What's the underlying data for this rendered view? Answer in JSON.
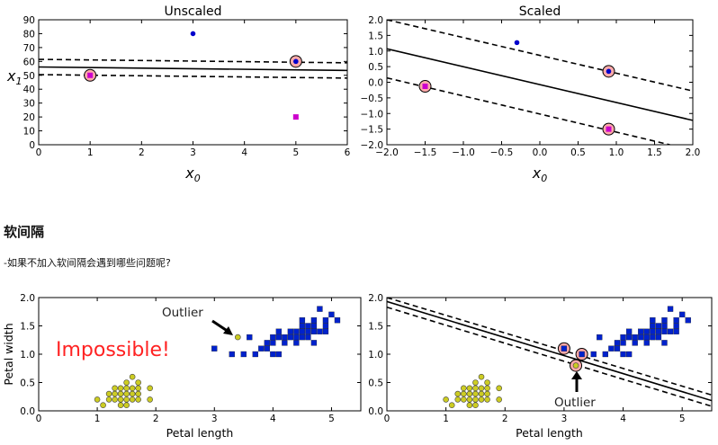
{
  "section_heading": "软间隔",
  "section_text": "-如果不加入软间隔会遇到哪些问题呢?",
  "chart_data": [
    {
      "type": "scatter",
      "title": "Unscaled",
      "xlabel": "x0",
      "ylabel": "x1",
      "xlim": [
        0,
        6
      ],
      "ylim": [
        0,
        90
      ],
      "xticks": [
        0,
        1,
        2,
        3,
        4,
        5,
        6
      ],
      "yticks": [
        0,
        10,
        20,
        30,
        40,
        50,
        60,
        70,
        80,
        90
      ],
      "series": [
        {
          "marker": "square",
          "color": "#cc00cc",
          "points": [
            [
              1,
              50
            ],
            [
              5,
              20
            ]
          ]
        },
        {
          "marker": "circle",
          "color": "#0000cc",
          "points": [
            [
              3,
              80
            ],
            [
              5,
              60
            ]
          ]
        }
      ],
      "support_vectors": [
        [
          1,
          50
        ],
        [
          5,
          60
        ]
      ],
      "lines": [
        {
          "style": "solid",
          "points": [
            [
              0,
              56
            ],
            [
              6,
              53.5
            ]
          ]
        },
        {
          "style": "dashed",
          "points": [
            [
              0,
              61.5
            ],
            [
              6,
              59
            ]
          ]
        },
        {
          "style": "dashed",
          "points": [
            [
              0,
              50.5
            ],
            [
              6,
              48
            ]
          ]
        }
      ]
    },
    {
      "type": "scatter",
      "title": "Scaled",
      "xlabel": "x0",
      "ylabel": "",
      "xlim": [
        -2,
        2
      ],
      "ylim": [
        -2,
        2
      ],
      "xticks": [
        -2,
        -1.5,
        -1,
        -0.5,
        0,
        0.5,
        1,
        1.5,
        2
      ],
      "xtick_labels": [
        "−2.0",
        "−1.5",
        "−1.0",
        "−0.5",
        "0.0",
        "0.5",
        "1.0",
        "1.5",
        "2.0"
      ],
      "yticks": [
        -2,
        -1.5,
        -1,
        -0.5,
        0,
        0.5,
        1,
        1.5,
        2
      ],
      "ytick_labels": [
        "−2.0",
        "−1.5",
        "−1.0",
        "−0.5",
        "0.0",
        "0.5",
        "1.0",
        "1.5",
        "2.0"
      ],
      "series": [
        {
          "marker": "square",
          "color": "#cc00cc",
          "points": [
            [
              -1.5,
              -0.13
            ],
            [
              0.9,
              -1.5
            ]
          ]
        },
        {
          "marker": "circle",
          "color": "#0000cc",
          "points": [
            [
              -0.3,
              1.27
            ],
            [
              0.9,
              0.35
            ]
          ]
        }
      ],
      "support_vectors": [
        [
          -1.5,
          -0.13
        ],
        [
          0.9,
          -1.5
        ],
        [
          0.9,
          0.35
        ]
      ],
      "lines": [
        {
          "style": "solid",
          "points": [
            [
              -2,
              1.07
            ],
            [
              2,
              -1.22
            ]
          ]
        },
        {
          "style": "dashed",
          "points": [
            [
              -2,
              2.0
            ],
            [
              2,
              -0.28
            ]
          ]
        },
        {
          "style": "dashed",
          "points": [
            [
              -2,
              0.14
            ],
            [
              1.7,
              -2.0
            ]
          ]
        }
      ]
    },
    {
      "type": "scatter",
      "title": "",
      "xlabel": "Petal length",
      "ylabel": "Petal width",
      "xlim": [
        0,
        5.5
      ],
      "ylim": [
        0,
        2
      ],
      "xticks": [
        0,
        1,
        2,
        3,
        4,
        5
      ],
      "yticks": [
        0,
        0.5,
        1,
        1.5,
        2
      ],
      "ytick_labels": [
        "0.0",
        "0.5",
        "1.0",
        "1.5",
        "2.0"
      ],
      "annotations": [
        {
          "text": "Outlier",
          "color": "#222222"
        },
        {
          "text": "Impossible!",
          "color": "#ff2222"
        }
      ],
      "series": [
        {
          "marker": "circle",
          "color": "#cccc22",
          "points": [
            [
              1.0,
              0.2
            ],
            [
              1.1,
              0.1
            ],
            [
              1.2,
              0.2
            ],
            [
              1.3,
              0.2
            ],
            [
              1.3,
              0.3
            ],
            [
              1.4,
              0.2
            ],
            [
              1.4,
              0.1
            ],
            [
              1.4,
              0.3
            ],
            [
              1.5,
              0.2
            ],
            [
              1.5,
              0.4
            ],
            [
              1.5,
              0.1
            ],
            [
              1.6,
              0.2
            ],
            [
              1.6,
              0.4
            ],
            [
              1.6,
              0.3
            ],
            [
              1.7,
              0.2
            ],
            [
              1.7,
              0.4
            ],
            [
              1.7,
              0.5
            ],
            [
              1.9,
              0.2
            ],
            [
              1.9,
              0.4
            ],
            [
              1.5,
              0.3
            ],
            [
              1.4,
              0.4
            ],
            [
              1.6,
              0.6
            ],
            [
              1.5,
              0.5
            ],
            [
              1.7,
              0.3
            ],
            [
              1.3,
              0.4
            ],
            [
              1.2,
              0.3
            ],
            [
              3.4,
              1.3
            ]
          ]
        },
        {
          "marker": "square",
          "color": "#0022cc",
          "points": [
            [
              3.0,
              1.1
            ],
            [
              3.3,
              1.0
            ],
            [
              3.5,
              1.0
            ],
            [
              3.6,
              1.3
            ],
            [
              3.7,
              1.0
            ],
            [
              3.8,
              1.1
            ],
            [
              3.9,
              1.1
            ],
            [
              3.9,
              1.2
            ],
            [
              4.0,
              1.0
            ],
            [
              4.0,
              1.3
            ],
            [
              4.0,
              1.2
            ],
            [
              4.1,
              1.0
            ],
            [
              4.1,
              1.3
            ],
            [
              4.2,
              1.2
            ],
            [
              4.2,
              1.3
            ],
            [
              4.3,
              1.3
            ],
            [
              4.4,
              1.4
            ],
            [
              4.4,
              1.2
            ],
            [
              4.4,
              1.3
            ],
            [
              4.5,
              1.5
            ],
            [
              4.5,
              1.3
            ],
            [
              4.6,
              1.4
            ],
            [
              4.6,
              1.3
            ],
            [
              4.6,
              1.5
            ],
            [
              4.7,
              1.4
            ],
            [
              4.7,
              1.2
            ],
            [
              4.7,
              1.5
            ],
            [
              4.8,
              1.8
            ],
            [
              4.8,
              1.4
            ],
            [
              4.9,
              1.5
            ],
            [
              4.9,
              1.6
            ],
            [
              5.0,
              1.7
            ],
            [
              5.1,
              1.6
            ],
            [
              4.5,
              1.6
            ],
            [
              4.9,
              1.4
            ],
            [
              4.5,
              1.4
            ],
            [
              4.7,
              1.6
            ],
            [
              4.3,
              1.4
            ],
            [
              4.1,
              1.4
            ]
          ]
        }
      ]
    },
    {
      "type": "scatter",
      "title": "",
      "xlabel": "Petal length",
      "ylabel": "",
      "xlim": [
        0,
        5.5
      ],
      "ylim": [
        0,
        2
      ],
      "xticks": [
        0,
        1,
        2,
        3,
        4,
        5
      ],
      "yticks": [
        0,
        0.5,
        1,
        1.5,
        2
      ],
      "ytick_labels": [
        "0.0",
        "0.5",
        "1.0",
        "1.5",
        "2.0"
      ],
      "annotations": [
        {
          "text": "Outlier",
          "color": "#222222"
        }
      ],
      "series": [
        {
          "marker": "circle",
          "color": "#cccc22",
          "points": [
            [
              1.0,
              0.2
            ],
            [
              1.1,
              0.1
            ],
            [
              1.2,
              0.2
            ],
            [
              1.3,
              0.2
            ],
            [
              1.3,
              0.3
            ],
            [
              1.4,
              0.2
            ],
            [
              1.4,
              0.1
            ],
            [
              1.4,
              0.3
            ],
            [
              1.5,
              0.2
            ],
            [
              1.5,
              0.4
            ],
            [
              1.5,
              0.1
            ],
            [
              1.6,
              0.2
            ],
            [
              1.6,
              0.4
            ],
            [
              1.6,
              0.3
            ],
            [
              1.7,
              0.2
            ],
            [
              1.7,
              0.4
            ],
            [
              1.7,
              0.5
            ],
            [
              1.9,
              0.2
            ],
            [
              1.9,
              0.4
            ],
            [
              1.5,
              0.3
            ],
            [
              1.4,
              0.4
            ],
            [
              1.6,
              0.6
            ],
            [
              1.5,
              0.5
            ],
            [
              1.7,
              0.3
            ],
            [
              1.3,
              0.4
            ],
            [
              1.2,
              0.3
            ],
            [
              3.2,
              0.8
            ]
          ]
        },
        {
          "marker": "square",
          "color": "#0022cc",
          "points": [
            [
              3.0,
              1.1
            ],
            [
              3.3,
              1.0
            ],
            [
              3.5,
              1.0
            ],
            [
              3.6,
              1.3
            ],
            [
              3.7,
              1.0
            ],
            [
              3.8,
              1.1
            ],
            [
              3.9,
              1.1
            ],
            [
              3.9,
              1.2
            ],
            [
              4.0,
              1.0
            ],
            [
              4.0,
              1.3
            ],
            [
              4.0,
              1.2
            ],
            [
              4.1,
              1.0
            ],
            [
              4.1,
              1.3
            ],
            [
              4.2,
              1.2
            ],
            [
              4.2,
              1.3
            ],
            [
              4.3,
              1.3
            ],
            [
              4.4,
              1.4
            ],
            [
              4.4,
              1.2
            ],
            [
              4.4,
              1.3
            ],
            [
              4.5,
              1.5
            ],
            [
              4.5,
              1.3
            ],
            [
              4.6,
              1.4
            ],
            [
              4.6,
              1.3
            ],
            [
              4.6,
              1.5
            ],
            [
              4.7,
              1.4
            ],
            [
              4.7,
              1.2
            ],
            [
              4.7,
              1.5
            ],
            [
              4.8,
              1.8
            ],
            [
              4.8,
              1.4
            ],
            [
              4.9,
              1.5
            ],
            [
              4.9,
              1.6
            ],
            [
              5.0,
              1.7
            ],
            [
              5.1,
              1.6
            ],
            [
              4.5,
              1.6
            ],
            [
              4.9,
              1.4
            ],
            [
              4.5,
              1.4
            ],
            [
              4.7,
              1.6
            ],
            [
              4.3,
              1.4
            ],
            [
              4.1,
              1.4
            ]
          ]
        }
      ],
      "support_vectors": [
        [
          3.0,
          1.1
        ],
        [
          3.3,
          1.0
        ],
        [
          3.2,
          0.8
        ]
      ],
      "lines": [
        {
          "style": "solid",
          "points": [
            [
              0,
              1.93
            ],
            [
              5.5,
              0.18
            ]
          ]
        },
        {
          "style": "dashed",
          "points": [
            [
              0,
              2.0
            ],
            [
              5.5,
              0.28
            ]
          ]
        },
        {
          "style": "dashed",
          "points": [
            [
              0,
              1.83
            ],
            [
              5.5,
              0.08
            ]
          ]
        }
      ]
    }
  ]
}
